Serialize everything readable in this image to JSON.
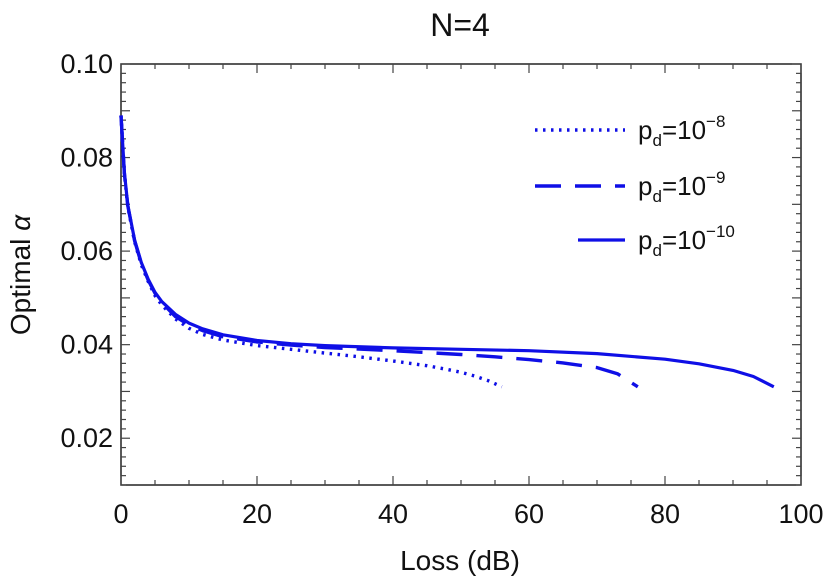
{
  "chart_data": {
    "type": "line",
    "title": "N=4",
    "xlabel": "Loss (dB)",
    "ylabel": {
      "text": "Optimal ",
      "symbol": "α"
    },
    "xlim": [
      0,
      100
    ],
    "ylim": [
      0.01,
      0.1
    ],
    "x_ticks": [
      0,
      20,
      40,
      60,
      80,
      100
    ],
    "x_tick_labels": [
      "0",
      "20",
      "40",
      "60",
      "80",
      "100"
    ],
    "y_ticks": [
      0.02,
      0.04,
      0.06,
      0.08,
      0.1
    ],
    "y_tick_labels": [
      "0.02",
      "0.04",
      "0.06",
      "0.08",
      "0.10"
    ],
    "grid": false,
    "legend_position": "top-right",
    "line_color": "#0f0fe6",
    "series": [
      {
        "name": "pd=10^-8",
        "legend": {
          "base": "p",
          "sub": "d",
          "eq": "=10",
          "sup": "−8"
        },
        "dash": "dotted",
        "points": [
          [
            0,
            0.089
          ],
          [
            0.5,
            0.0765
          ],
          [
            1,
            0.0695
          ],
          [
            2,
            0.062
          ],
          [
            3,
            0.057
          ],
          [
            4,
            0.0535
          ],
          [
            5,
            0.0505
          ],
          [
            6,
            0.0485
          ],
          [
            8,
            0.0455
          ],
          [
            10,
            0.0435
          ],
          [
            12,
            0.0422
          ],
          [
            15,
            0.041
          ],
          [
            20,
            0.0398
          ],
          [
            25,
            0.039
          ],
          [
            30,
            0.0382
          ],
          [
            35,
            0.0374
          ],
          [
            40,
            0.0365
          ],
          [
            45,
            0.0355
          ],
          [
            48,
            0.0347
          ],
          [
            50,
            0.0341
          ],
          [
            52,
            0.0333
          ],
          [
            54,
            0.0323
          ],
          [
            56,
            0.031
          ]
        ]
      },
      {
        "name": "pd=10^-9",
        "legend": {
          "base": "p",
          "sub": "d",
          "eq": "=10",
          "sup": "−9"
        },
        "dash": "dashed",
        "points": [
          [
            0,
            0.089
          ],
          [
            0.5,
            0.0765
          ],
          [
            1,
            0.0697
          ],
          [
            2,
            0.0622
          ],
          [
            3,
            0.0573
          ],
          [
            4,
            0.0538
          ],
          [
            5,
            0.051
          ],
          [
            6,
            0.049
          ],
          [
            8,
            0.046
          ],
          [
            10,
            0.0442
          ],
          [
            12,
            0.043
          ],
          [
            15,
            0.0417
          ],
          [
            20,
            0.0406
          ],
          [
            25,
            0.0399
          ],
          [
            30,
            0.0394
          ],
          [
            40,
            0.0387
          ],
          [
            50,
            0.0379
          ],
          [
            55,
            0.0374
          ],
          [
            60,
            0.0368
          ],
          [
            65,
            0.0361
          ],
          [
            70,
            0.0351
          ],
          [
            73,
            0.0338
          ],
          [
            76,
            0.031
          ]
        ]
      },
      {
        "name": "pd=10^-10",
        "legend": {
          "base": "p",
          "sub": "d",
          "eq": "=10",
          "sup": "−10"
        },
        "dash": "solid",
        "points": [
          [
            0,
            0.089
          ],
          [
            0.5,
            0.0768
          ],
          [
            1,
            0.0698
          ],
          [
            2,
            0.0624
          ],
          [
            3,
            0.0575
          ],
          [
            4,
            0.054
          ],
          [
            5,
            0.0512
          ],
          [
            6,
            0.0492
          ],
          [
            8,
            0.0465
          ],
          [
            10,
            0.0446
          ],
          [
            12,
            0.0434
          ],
          [
            15,
            0.0421
          ],
          [
            20,
            0.0409
          ],
          [
            25,
            0.0402
          ],
          [
            30,
            0.0398
          ],
          [
            40,
            0.0393
          ],
          [
            50,
            0.039
          ],
          [
            60,
            0.0387
          ],
          [
            70,
            0.0381
          ],
          [
            80,
            0.0369
          ],
          [
            85,
            0.0359
          ],
          [
            90,
            0.0345
          ],
          [
            93,
            0.0332
          ],
          [
            96,
            0.031
          ]
        ]
      }
    ]
  }
}
